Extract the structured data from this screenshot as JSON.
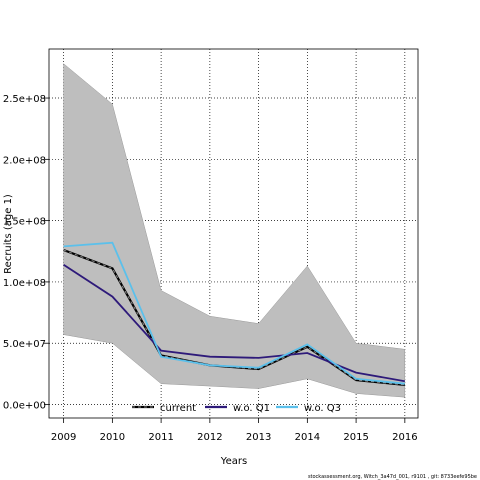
{
  "chart_data": {
    "type": "line",
    "xlabel": "Years",
    "ylabel": "Recruits (age 1)",
    "x": [
      2009,
      2010,
      2011,
      2012,
      2013,
      2014,
      2015,
      2016
    ],
    "xlim": [
      2008.7,
      2016.27
    ],
    "ylim": [
      -11000000.0,
      290000000.0
    ],
    "y_ticks": [
      0,
      50000000,
      100000000,
      150000000,
      200000000,
      250000000
    ],
    "y_tick_labels": [
      "0.0e+00",
      "5.0e+07",
      "1.0e+08",
      "1.5e+08",
      "2.0e+08",
      "2.5e+08"
    ],
    "x_tick_labels": [
      "2009",
      "2010",
      "2011",
      "2012",
      "2013",
      "2014",
      "2015",
      "2016"
    ],
    "grid": true,
    "legend_position": "bottom",
    "band": {
      "upper": [
        278000000,
        245000000,
        93000000,
        72000000,
        66000000,
        113000000,
        50000000,
        45000000
      ],
      "lower": [
        57000000,
        50000000,
        17000000,
        15000000,
        13000000,
        21000000,
        9000000,
        6000000
      ],
      "color": "#bebebe"
    },
    "series": [
      {
        "name": "current",
        "values": [
          126000000,
          111000000,
          40000000,
          32000000,
          29000000,
          47000000,
          20000000,
          16000000
        ],
        "color": "#000000",
        "dashed": true
      },
      {
        "name": "w.o. Q1",
        "values": [
          114000000,
          88000000,
          44000000,
          39000000,
          38000000,
          42000000,
          26000000,
          19000000
        ],
        "color": "#2e1a7a",
        "dashed": false
      },
      {
        "name": "w.o. Q3",
        "values": [
          129000000,
          132000000,
          39000000,
          32000000,
          30000000,
          49000000,
          21000000,
          17000000
        ],
        "color": "#5bc0eb",
        "dashed": false
      }
    ]
  },
  "footer": "stockassessment.org, Witch_3a47d_001, r9101 , git: 8733eefe95be"
}
